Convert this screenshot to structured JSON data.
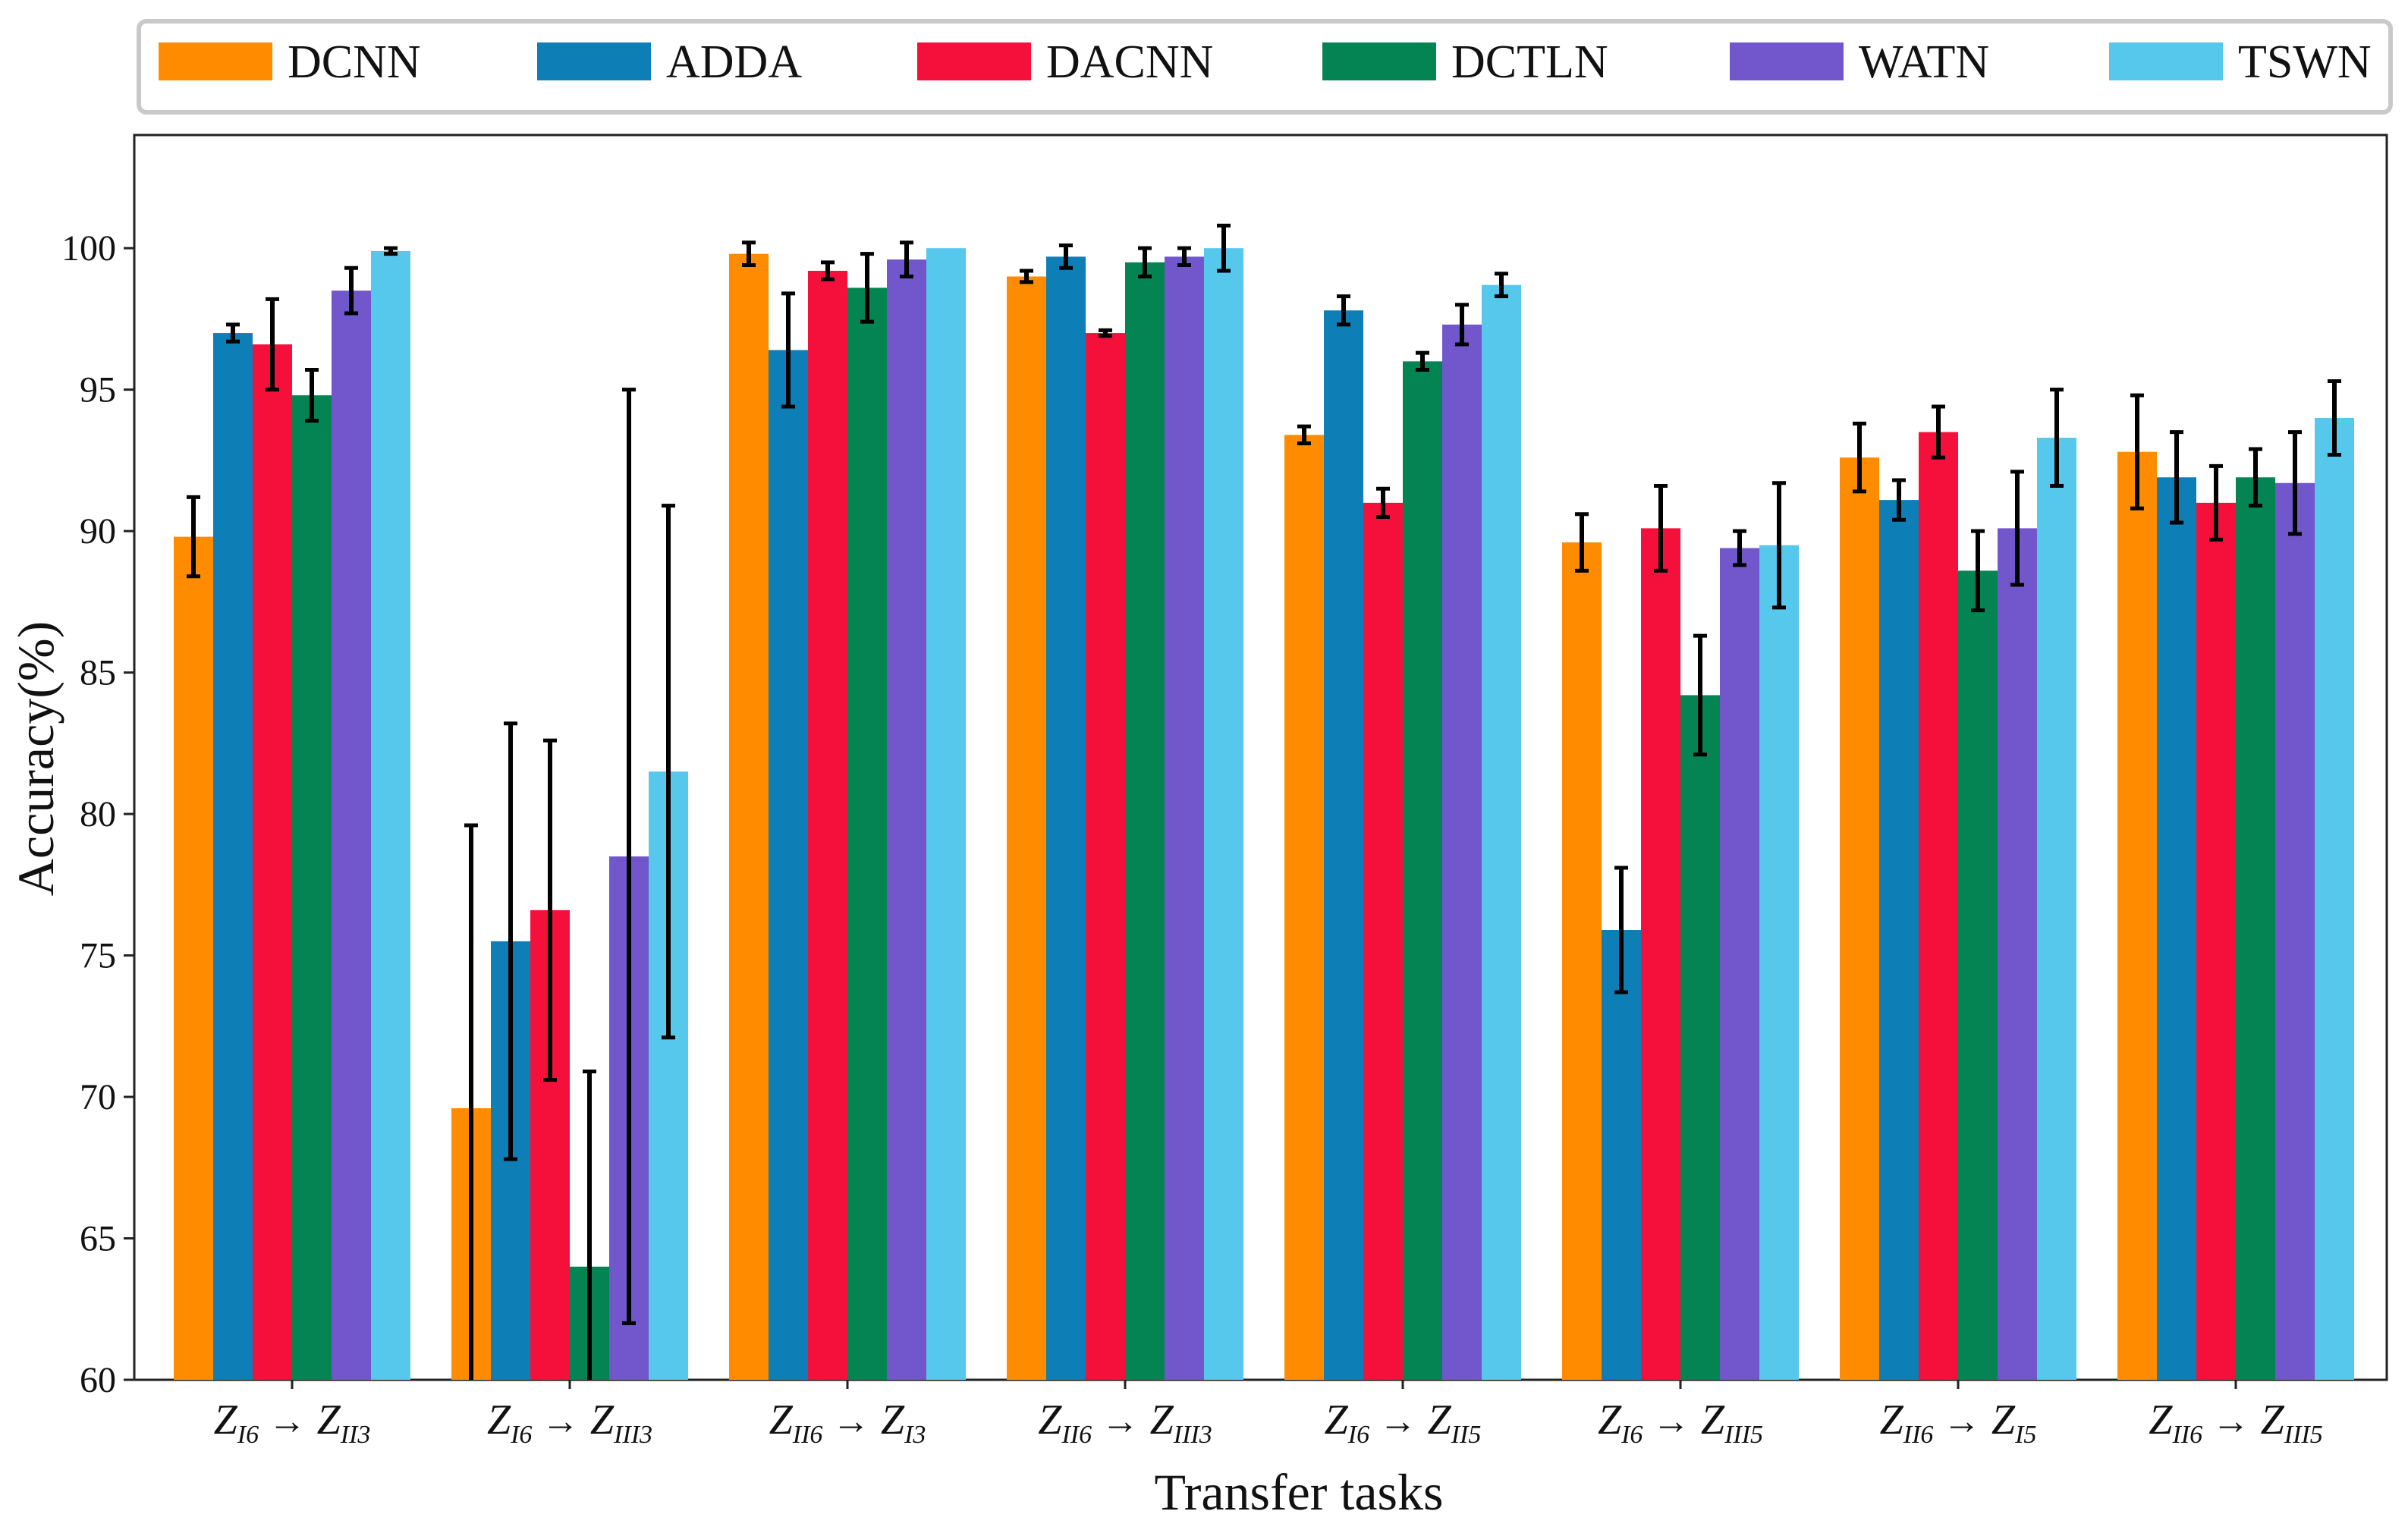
{
  "chart_data": {
    "type": "bar",
    "title": "",
    "xlabel": "Transfer tasks",
    "ylabel": "Accuracy(%)",
    "ylim": [
      60,
      104
    ],
    "yticks": [
      60,
      65,
      70,
      75,
      80,
      85,
      90,
      95,
      100
    ],
    "legend_position": "top",
    "categories": [
      {
        "from_main": "Z",
        "from_sub": "I6",
        "arrow": "→",
        "to_main": "Z",
        "to_sub": "II3"
      },
      {
        "from_main": "Z",
        "from_sub": "I6",
        "arrow": "→",
        "to_main": "Z",
        "to_sub": "III3"
      },
      {
        "from_main": "Z",
        "from_sub": "II6",
        "arrow": "→",
        "to_main": "Z",
        "to_sub": "I3"
      },
      {
        "from_main": "Z",
        "from_sub": "II6",
        "arrow": "→",
        "to_main": "Z",
        "to_sub": "III3"
      },
      {
        "from_main": "Z",
        "from_sub": "I6",
        "arrow": "→",
        "to_main": "Z",
        "to_sub": "II5"
      },
      {
        "from_main": "Z",
        "from_sub": "I6",
        "arrow": "→",
        "to_main": "Z",
        "to_sub": "III5"
      },
      {
        "from_main": "Z",
        "from_sub": "II6",
        "arrow": "→",
        "to_main": "Z",
        "to_sub": "I5"
      },
      {
        "from_main": "Z",
        "from_sub": "II6",
        "arrow": "→",
        "to_main": "Z",
        "to_sub": "III5"
      }
    ],
    "series": [
      {
        "name": "DCNN",
        "color": "#FF8C00",
        "values": [
          89.8,
          69.6,
          99.8,
          99.0,
          93.4,
          89.6,
          92.6,
          92.8
        ],
        "errors": [
          1.4,
          10.0,
          0.4,
          0.2,
          0.3,
          1.0,
          1.2,
          2.0
        ]
      },
      {
        "name": "ADDA",
        "color": "#0E7EB6",
        "values": [
          97.0,
          75.5,
          96.4,
          99.7,
          97.8,
          75.9,
          91.1,
          91.9
        ],
        "errors": [
          0.3,
          7.7,
          2.0,
          0.4,
          0.5,
          2.2,
          0.7,
          1.6
        ]
      },
      {
        "name": "DACNN",
        "color": "#F5103C",
        "values": [
          96.6,
          76.6,
          99.2,
          97.0,
          91.0,
          90.1,
          93.5,
          91.0
        ],
        "errors": [
          1.6,
          6.0,
          0.3,
          0.1,
          0.5,
          1.5,
          0.9,
          1.3
        ]
      },
      {
        "name": "DCTLN",
        "color": "#048453",
        "values": [
          94.8,
          64.0,
          98.6,
          99.5,
          96.0,
          84.2,
          88.6,
          91.9
        ],
        "errors": [
          0.9,
          6.9,
          1.2,
          0.5,
          0.3,
          2.1,
          1.4,
          1.0
        ]
      },
      {
        "name": "WATN",
        "color": "#7256CC",
        "values": [
          98.5,
          78.5,
          99.6,
          99.7,
          97.3,
          89.4,
          90.1,
          91.7
        ],
        "errors": [
          0.8,
          16.5,
          0.6,
          0.3,
          0.7,
          0.6,
          2.0,
          1.8
        ]
      },
      {
        "name": "TSWN",
        "color": "#56C8EC",
        "values": [
          99.9,
          81.5,
          100.0,
          100.0,
          98.7,
          89.5,
          93.3,
          94.0
        ],
        "errors": [
          0.1,
          9.4,
          0.0,
          0.8,
          0.4,
          2.2,
          1.7,
          1.3
        ]
      }
    ]
  }
}
